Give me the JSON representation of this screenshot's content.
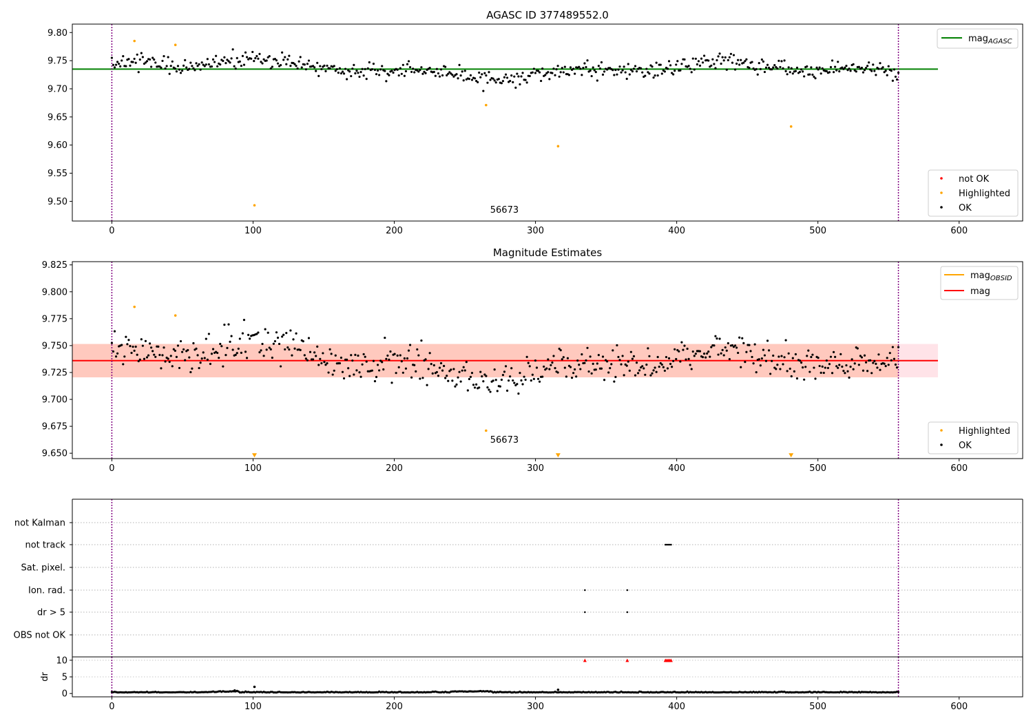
{
  "chart_data": [
    {
      "type": "scatter",
      "title": "AGASC ID 377489552.0",
      "xlabel": "",
      "ylabel": "",
      "xlim": [
        -28,
        645
      ],
      "ylim": [
        9.465,
        9.815
      ],
      "xticks": [
        0,
        100,
        200,
        300,
        400,
        500,
        600
      ],
      "xtick_labels": [
        "0",
        "100",
        "200",
        "300",
        "400",
        "500",
        "600"
      ],
      "yticks": [
        9.5,
        9.55,
        9.6,
        9.65,
        9.7,
        9.75,
        9.8
      ],
      "ytick_labels": [
        "9.50",
        "9.55",
        "9.60",
        "9.65",
        "9.70",
        "9.75",
        "9.80"
      ],
      "vlines": [
        0,
        557
      ],
      "vline_color": "#800080",
      "hline": {
        "y": 9.735,
        "x": [
          -28,
          585
        ],
        "color": "#008000"
      },
      "annotation": {
        "text": "56673",
        "x": 278,
        "y": 9.47
      },
      "legend_lines": [
        {
          "label": "mag",
          "sub": "AGASC",
          "color": "#008000"
        }
      ],
      "legend_points": [
        {
          "label": "not OK",
          "color": "#ff0000"
        },
        {
          "label": "Highlighted",
          "color": "#ffa500"
        },
        {
          "label": "OK",
          "color": "#000000"
        }
      ],
      "series": [
        {
          "name": "Highlighted",
          "color": "#ffa500",
          "x": [
            16,
            45,
            101,
            265,
            316,
            481
          ],
          "y": [
            9.785,
            9.778,
            9.493,
            9.671,
            9.598,
            9.633
          ]
        },
        {
          "name": "OK",
          "color": "#000000",
          "generated": true,
          "x_range": [
            0,
            557
          ],
          "n": 560,
          "center": 9.735,
          "spread": 0.012
        }
      ]
    },
    {
      "type": "scatter",
      "title": "Magnitude Estimates",
      "xlabel": "",
      "ylabel": "",
      "xlim": [
        -28,
        645
      ],
      "ylim": [
        9.645,
        9.828
      ],
      "xticks": [
        0,
        100,
        200,
        300,
        400,
        500,
        600
      ],
      "xtick_labels": [
        "0",
        "100",
        "200",
        "300",
        "400",
        "500",
        "600"
      ],
      "yticks": [
        9.65,
        9.675,
        9.7,
        9.725,
        9.75,
        9.775,
        9.8,
        9.825
      ],
      "ytick_labels": [
        "9.650",
        "9.675",
        "9.700",
        "9.725",
        "9.750",
        "9.775",
        "9.800",
        "9.825"
      ],
      "vlines": [
        0,
        557
      ],
      "vline_color": "#800080",
      "bands": [
        {
          "y": [
            9.7205,
            9.7515
          ],
          "x": [
            -28,
            585
          ],
          "color": "#ffc0cb",
          "opacity": 0.45
        },
        {
          "y": [
            9.7205,
            9.7515
          ],
          "x": [
            -28,
            557
          ],
          "color": "#ffa07a",
          "opacity": 0.38
        }
      ],
      "hline": {
        "y": 9.736,
        "x": [
          -28,
          585
        ],
        "color": "#ff0000"
      },
      "annotation": {
        "text": "56673",
        "x": 278,
        "y": 9.659
      },
      "legend_lines": [
        {
          "label": "mag",
          "sub": "OBSID",
          "color": "#ffa500"
        },
        {
          "label": "mag",
          "sub": "",
          "color": "#ff0000"
        }
      ],
      "legend_points": [
        {
          "label": "Highlighted",
          "color": "#ffa500"
        },
        {
          "label": "OK",
          "color": "#000000"
        }
      ],
      "series": [
        {
          "name": "Highlighted",
          "color": "#ffa500",
          "x": [
            16,
            45,
            265
          ],
          "y": [
            9.786,
            9.778,
            9.671
          ]
        },
        {
          "name": "Highlighted below range",
          "color": "#ffa500",
          "marker": "triangle-down",
          "x": [
            101,
            316,
            481
          ],
          "y": [
            9.648,
            9.648,
            9.648
          ]
        },
        {
          "name": "OK",
          "color": "#000000",
          "generated": true,
          "x_range": [
            0,
            557
          ],
          "n": 560,
          "center": 9.735,
          "spread": 0.012
        }
      ]
    },
    {
      "type": "scatter",
      "title": "",
      "xlabel": "",
      "ylabel": "",
      "xlim": [
        -28,
        645
      ],
      "categories": [
        "OBS not OK",
        "dr > 5",
        "Ion. rad.",
        "Sat. pixel.",
        "not track",
        "not Kalman"
      ],
      "vlines": [
        0,
        557
      ],
      "vline_color": "#800080",
      "flags": [
        {
          "category": "not track",
          "x": [
            392,
            393,
            394,
            395,
            396
          ]
        },
        {
          "category": "Ion. rad.",
          "x": [
            335,
            365
          ]
        },
        {
          "category": "dr > 5",
          "x": [
            335,
            365
          ]
        }
      ]
    },
    {
      "type": "scatter",
      "title": "",
      "xlabel": "",
      "ylabel": "dr",
      "xlim": [
        -28,
        645
      ],
      "ylim": [
        -1,
        11
      ],
      "xticks": [
        0,
        100,
        200,
        300,
        400,
        500,
        600
      ],
      "xtick_labels": [
        "0",
        "100",
        "200",
        "300",
        "400",
        "500",
        "600"
      ],
      "yticks": [
        0,
        5,
        10
      ],
      "ytick_labels": [
        "0",
        "5",
        "10"
      ],
      "vlines": [
        0,
        557
      ],
      "vline_color": "#800080",
      "series": [
        {
          "name": "clipped",
          "color": "#ff0000",
          "marker": "triangle-up",
          "x": [
            335,
            365,
            392,
            393,
            394,
            395,
            396
          ],
          "y": [
            10,
            10,
            10,
            10,
            10,
            10,
            10
          ]
        },
        {
          "name": "dr",
          "color": "#000000",
          "x": [
            87,
            101,
            316
          ],
          "y": [
            0.9,
            2.0,
            1.1
          ]
        },
        {
          "name": "dr baseline",
          "color": "#000000",
          "generated": true,
          "x_range": [
            0,
            557
          ],
          "n": 560,
          "center": 0.3,
          "spread": 0.1
        }
      ]
    }
  ]
}
